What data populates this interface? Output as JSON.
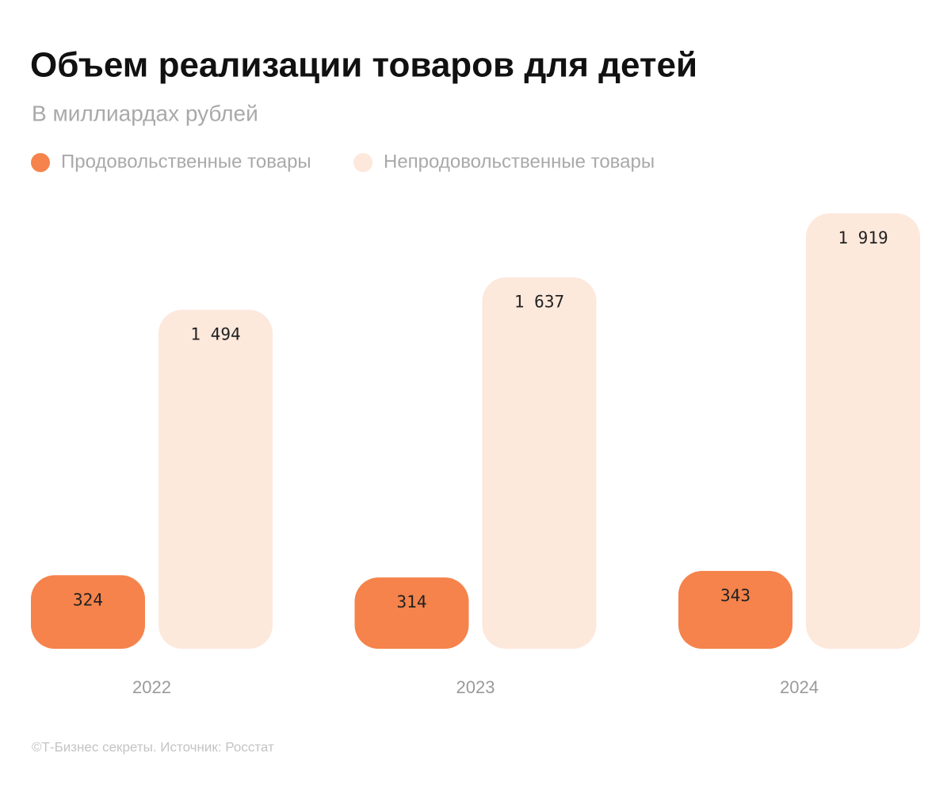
{
  "chart_data": {
    "type": "bar",
    "title": "Объем реализации товаров для детей",
    "subtitle": "В миллиардах рублей",
    "source": "©Т-Бизнес секреты. Источник: Росстат",
    "categories": [
      "2022",
      "2023",
      "2024"
    ],
    "series": [
      {
        "name": "Продовольственные товары",
        "color": "#f5834b",
        "values": [
          324,
          314,
          343
        ]
      },
      {
        "name": "Непродовольственные товары",
        "color": "#fde8dc",
        "values": [
          1494,
          1637,
          1919
        ],
        "value_labels": [
          "1 494",
          "1 637",
          "1 919"
        ]
      }
    ]
  }
}
